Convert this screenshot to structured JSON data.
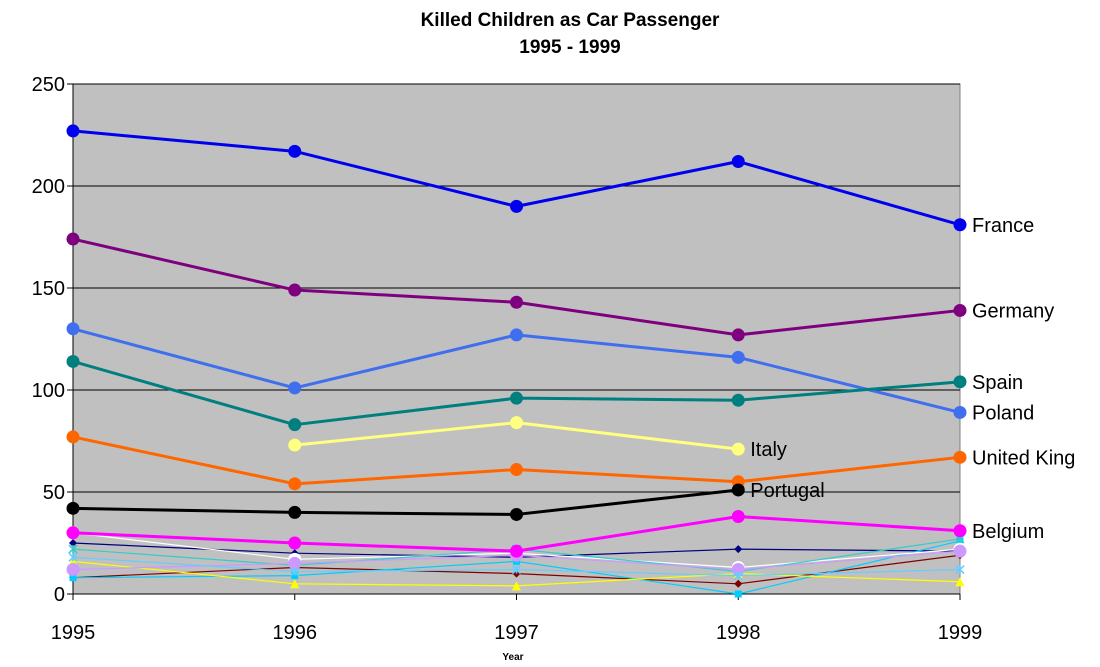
{
  "chart_data": {
    "type": "line",
    "title": "Killed Children as Car Passenger",
    "subtitle": "1995 - 1999",
    "xlabel": "Year",
    "ylabel": "",
    "x": [
      1995,
      1996,
      1997,
      1998,
      1999
    ],
    "x_tick_labels": [
      "1995",
      "1996",
      "1997",
      "1998",
      "1999"
    ],
    "ylim": [
      0,
      250
    ],
    "y_ticks": [
      0,
      50,
      100,
      150,
      200,
      250
    ],
    "y_tick_labels": [
      "0",
      "50",
      "100",
      "150",
      "200",
      "250"
    ],
    "grid": "horizontal",
    "plot_background": "#c0c0c0",
    "series": [
      {
        "name": "France",
        "color": "#0000ee",
        "marker": "circle",
        "values": [
          227,
          217,
          190,
          212,
          181
        ]
      },
      {
        "name": "Germany",
        "color": "#7f007f",
        "marker": "circle",
        "values": [
          174,
          149,
          143,
          127,
          139
        ]
      },
      {
        "name": "Poland",
        "color": "#3f6fef",
        "marker": "circle",
        "values": [
          130,
          101,
          127,
          116,
          89
        ]
      },
      {
        "name": "Spain",
        "color": "#007f7f",
        "marker": "circle",
        "values": [
          114,
          83,
          96,
          95,
          104
        ]
      },
      {
        "name": "Italy",
        "color": "#ffff80",
        "marker": "circle",
        "values": [
          null,
          73,
          84,
          71,
          null
        ]
      },
      {
        "name": "United King",
        "color": "#ff6600",
        "marker": "circle",
        "values": [
          77,
          54,
          61,
          55,
          67
        ]
      },
      {
        "name": "Portugal",
        "color": "#000000",
        "marker": "circle",
        "values": [
          42,
          40,
          39,
          51,
          null
        ]
      },
      {
        "name": "Belgium",
        "color": "#ff00ff",
        "marker": "circle",
        "values": [
          30,
          25,
          21,
          38,
          31
        ]
      },
      {
        "name": "",
        "color": "#000080",
        "marker": "diamond",
        "values": [
          25,
          20,
          18,
          22,
          21
        ]
      },
      {
        "name": "",
        "color": "#800000",
        "marker": "diamond",
        "values": [
          8,
          13,
          10,
          5,
          19
        ]
      },
      {
        "name": "",
        "color": "#00ccff",
        "marker": "square",
        "values": [
          8,
          9,
          16,
          0,
          26
        ]
      },
      {
        "name": "",
        "color": "#ffff00",
        "marker": "triangle",
        "values": [
          16,
          5,
          4,
          10,
          6
        ]
      },
      {
        "name": "",
        "color": "#ffffff",
        "marker": "circle",
        "values": [
          30,
          17,
          20,
          13,
          22
        ]
      },
      {
        "name": "",
        "color": "#33cccc",
        "marker": "star",
        "values": [
          22,
          14,
          22,
          11,
          27
        ]
      },
      {
        "name": "",
        "color": "#cc99ff",
        "marker": "circle",
        "values": [
          12,
          15,
          19,
          12,
          21
        ]
      },
      {
        "name": "",
        "color": "#66ccff",
        "marker": "star",
        "values": [
          18,
          11,
          12,
          9,
          12
        ]
      }
    ]
  }
}
